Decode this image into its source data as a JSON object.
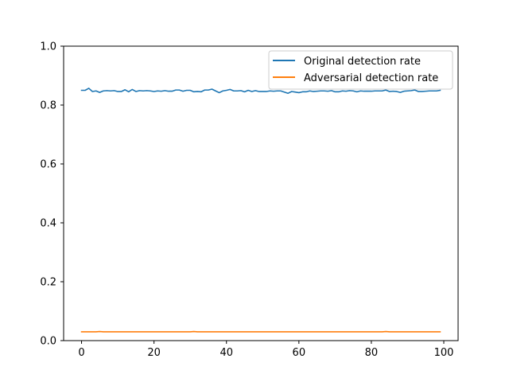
{
  "chart_data": {
    "type": "line",
    "xlim": [
      -4.95,
      103.95
    ],
    "ylim": [
      0,
      1.0
    ],
    "x_ticks": [
      0,
      20,
      40,
      60,
      80,
      100
    ],
    "y_ticks": [
      0.0,
      0.2,
      0.4,
      0.6,
      0.8,
      1.0
    ],
    "x_tick_labels": [
      "0",
      "20",
      "40",
      "60",
      "80",
      "100"
    ],
    "y_tick_labels": [
      "0.0",
      "0.2",
      "0.4",
      "0.6",
      "0.8",
      "1.0"
    ],
    "grid": false,
    "legend_position": "top-right",
    "x": [
      0,
      1,
      2,
      3,
      4,
      5,
      6,
      7,
      8,
      9,
      10,
      11,
      12,
      13,
      14,
      15,
      16,
      17,
      18,
      19,
      20,
      21,
      22,
      23,
      24,
      25,
      26,
      27,
      28,
      29,
      30,
      31,
      32,
      33,
      34,
      35,
      36,
      37,
      38,
      39,
      40,
      41,
      42,
      43,
      44,
      45,
      46,
      47,
      48,
      49,
      50,
      51,
      52,
      53,
      54,
      55,
      56,
      57,
      58,
      59,
      60,
      61,
      62,
      63,
      64,
      65,
      66,
      67,
      68,
      69,
      70,
      71,
      72,
      73,
      74,
      75,
      76,
      77,
      78,
      79,
      80,
      81,
      82,
      83,
      84,
      85,
      86,
      87,
      88,
      89,
      90,
      91,
      92,
      93,
      94,
      95,
      96,
      97,
      98,
      99
    ],
    "series": [
      {
        "name": "Original detection rate",
        "color": "#1f77b4",
        "values": [
          0.85,
          0.85,
          0.857,
          0.846,
          0.848,
          0.843,
          0.848,
          0.849,
          0.848,
          0.849,
          0.846,
          0.846,
          0.852,
          0.845,
          0.853,
          0.846,
          0.849,
          0.848,
          0.849,
          0.848,
          0.846,
          0.848,
          0.847,
          0.849,
          0.847,
          0.847,
          0.851,
          0.851,
          0.847,
          0.85,
          0.85,
          0.845,
          0.846,
          0.845,
          0.851,
          0.851,
          0.854,
          0.848,
          0.842,
          0.848,
          0.85,
          0.853,
          0.848,
          0.848,
          0.849,
          0.845,
          0.85,
          0.846,
          0.849,
          0.846,
          0.846,
          0.846,
          0.848,
          0.847,
          0.848,
          0.848,
          0.844,
          0.84,
          0.846,
          0.844,
          0.842,
          0.845,
          0.845,
          0.848,
          0.846,
          0.847,
          0.848,
          0.848,
          0.847,
          0.849,
          0.845,
          0.845,
          0.848,
          0.847,
          0.849,
          0.848,
          0.845,
          0.848,
          0.847,
          0.847,
          0.847,
          0.848,
          0.848,
          0.848,
          0.851,
          0.846,
          0.847,
          0.846,
          0.843,
          0.847,
          0.848,
          0.849,
          0.851,
          0.846,
          0.846,
          0.847,
          0.848,
          0.848,
          0.848,
          0.85
        ]
      },
      {
        "name": "Adversarial detection rate",
        "color": "#ff7f0e",
        "values": [
          0.03,
          0.03,
          0.03,
          0.03,
          0.03,
          0.031,
          0.03,
          0.03,
          0.03,
          0.03,
          0.03,
          0.03,
          0.03,
          0.03,
          0.03,
          0.03,
          0.03,
          0.03,
          0.03,
          0.03,
          0.03,
          0.03,
          0.03,
          0.03,
          0.03,
          0.03,
          0.03,
          0.03,
          0.03,
          0.03,
          0.03,
          0.031,
          0.03,
          0.03,
          0.03,
          0.03,
          0.03,
          0.03,
          0.03,
          0.03,
          0.03,
          0.03,
          0.03,
          0.03,
          0.03,
          0.03,
          0.03,
          0.03,
          0.03,
          0.03,
          0.03,
          0.03,
          0.03,
          0.03,
          0.03,
          0.03,
          0.03,
          0.03,
          0.03,
          0.03,
          0.03,
          0.03,
          0.03,
          0.03,
          0.03,
          0.03,
          0.03,
          0.03,
          0.03,
          0.03,
          0.03,
          0.03,
          0.03,
          0.03,
          0.03,
          0.03,
          0.03,
          0.03,
          0.03,
          0.03,
          0.03,
          0.03,
          0.03,
          0.03,
          0.031,
          0.03,
          0.03,
          0.03,
          0.03,
          0.03,
          0.03,
          0.03,
          0.03,
          0.03,
          0.03,
          0.03,
          0.03,
          0.03,
          0.03,
          0.03
        ]
      }
    ]
  }
}
